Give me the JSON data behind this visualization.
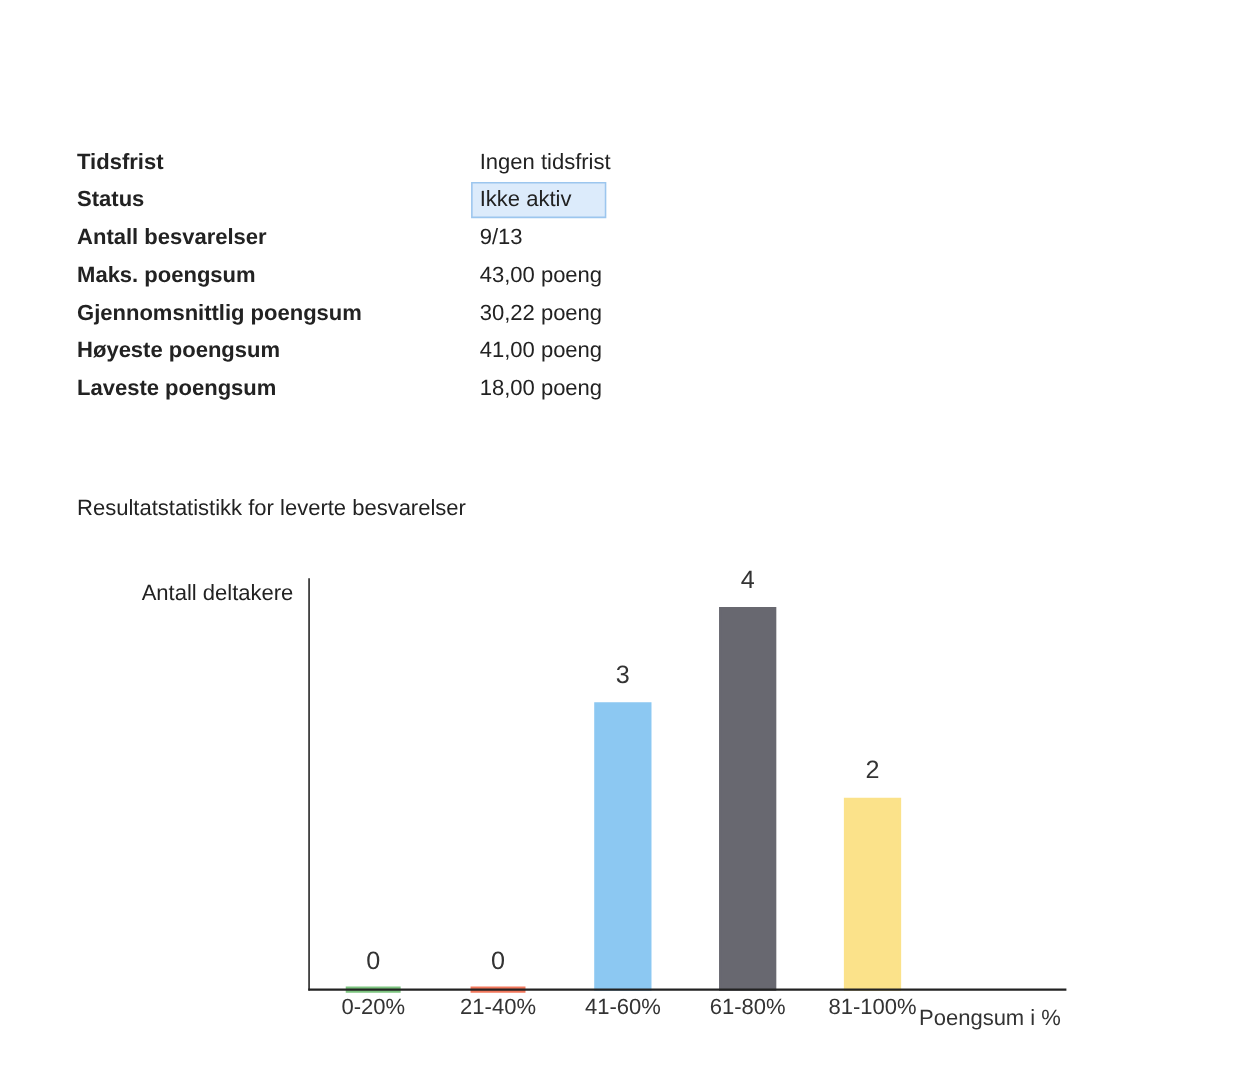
{
  "chart_data": [
    {
      "type": "other",
      "annotations": [
        "Tidsfrist",
        "Ingen tidsfrist",
        "Status",
        "Ikke aktiv",
        "Antall besvarelser",
        "9/13",
        "Maks. poengsum",
        "43,00 poeng",
        "Gjennomsnittlig poengsum",
        "30,22 poeng",
        "Høyeste poengsum",
        "41,00 poeng",
        "Laveste poengsum",
        "18,00 poeng"
      ]
    },
    {
      "type": "bar",
      "title": "Resultatstatistikk for leverte besvarelser",
      "xlabel": "Poengsum i %",
      "ylabel": "Antall deltakere",
      "categories": [
        "0-20%",
        "21-40%",
        "41-60%",
        "61-80%",
        "81-100%"
      ],
      "values": [
        0,
        0,
        3,
        4,
        2
      ],
      "colors": [
        "#7cc47f",
        "#f2785c",
        "#8cc8f2",
        "#686870",
        "#fbe28a"
      ],
      "data_labels": true,
      "tick_labels": "x",
      "grid": false,
      "legend": false
    }
  ]
}
